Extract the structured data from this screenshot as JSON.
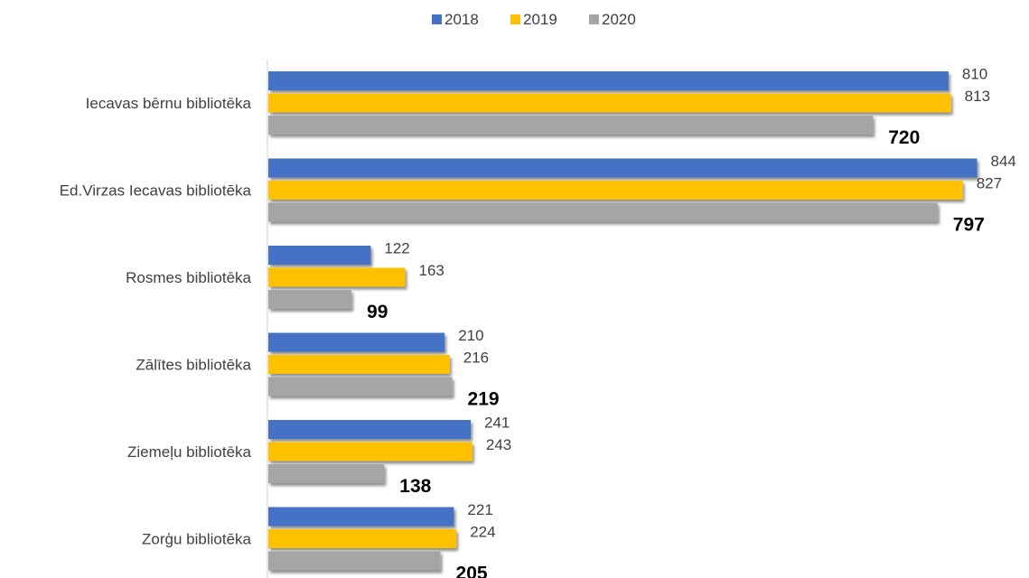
{
  "chart_data": {
    "type": "bar",
    "orientation": "horizontal",
    "categories": [
      "Iecavas bērnu bibliotēka",
      "Ed.Virzas Iecavas bibliotēka",
      "Rosmes bibliotēka",
      "Zālītes bibliotēka",
      "Ziemeļu bibliotēka",
      "Zorģu bibliotēka"
    ],
    "series": [
      {
        "name": "2018",
        "color": "#4472C4",
        "values": [
          810,
          844,
          122,
          210,
          241,
          221
        ],
        "label_style": "normal"
      },
      {
        "name": "2019",
        "color": "#FFC000",
        "values": [
          813,
          827,
          163,
          216,
          243,
          224
        ],
        "label_style": "normal"
      },
      {
        "name": "2020",
        "color": "#A5A5A5",
        "values": [
          720,
          797,
          99,
          219,
          138,
          205
        ],
        "label_style": "bold"
      }
    ],
    "title": "",
    "xlabel": "",
    "ylabel": "",
    "xlim": [
      0,
      850
    ],
    "grid": false,
    "legend_position": "top"
  }
}
